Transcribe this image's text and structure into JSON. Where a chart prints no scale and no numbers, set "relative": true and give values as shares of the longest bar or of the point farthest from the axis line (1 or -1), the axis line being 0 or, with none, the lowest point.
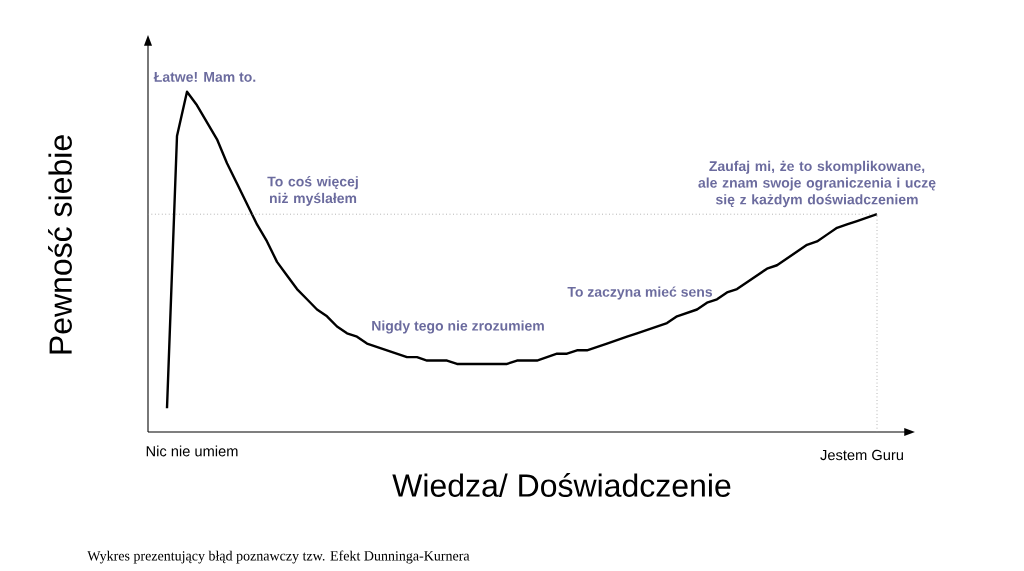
{
  "chart_data": {
    "type": "line",
    "relative": true,
    "xlabel": "Wiedza/ Doświadczenie",
    "ylabel": "Pewność siebie",
    "categories": [
      null,
      null,
      null,
      null,
      null,
      null,
      null,
      null,
      null,
      null,
      null,
      null,
      null,
      null,
      null,
      null,
      null,
      null,
      null,
      null,
      null,
      null,
      null,
      null,
      null,
      null,
      null,
      null,
      null,
      null,
      null,
      null,
      null,
      null,
      null,
      null,
      null,
      null,
      null,
      null,
      null,
      null,
      null,
      null,
      null,
      null,
      null,
      null,
      null,
      null,
      null,
      null,
      null,
      null,
      null,
      null,
      null,
      null,
      null,
      null,
      null,
      null,
      null,
      null,
      null,
      null,
      null,
      null,
      null,
      null,
      null,
      null
    ],
    "series": [
      {
        "color": "#000000",
        "values": [
          0.07,
          0.87,
          1.0,
          0.96,
          0.91,
          0.86,
          0.79,
          0.73,
          0.67,
          0.61,
          0.56,
          0.5,
          0.46,
          0.42,
          0.39,
          0.36,
          0.34,
          0.31,
          0.29,
          0.28,
          0.26,
          0.25,
          0.24,
          0.23,
          0.22,
          0.22,
          0.21,
          0.21,
          0.21,
          0.2,
          0.2,
          0.2,
          0.2,
          0.2,
          0.2,
          0.21,
          0.21,
          0.21,
          0.22,
          0.23,
          0.23,
          0.24,
          0.24,
          0.25,
          0.26,
          0.27,
          0.28,
          0.29,
          0.3,
          0.31,
          0.32,
          0.34,
          0.35,
          0.36,
          0.38,
          0.39,
          0.41,
          0.42,
          0.44,
          0.46,
          0.48,
          0.49,
          0.51,
          0.53,
          0.55,
          0.56,
          0.58,
          0.6,
          0.61,
          0.62,
          0.63,
          0.64
        ]
      }
    ],
    "ref_lines": [
      {
        "axis": "y",
        "value": 0.64,
        "color": "#8c8c8c",
        "line_style": "dotted"
      }
    ],
    "annotations": [
      "Łatwe! Mam to.",
      "To coś więcej niż myślałem",
      "Nigdy tego nie zrozumiem",
      "To zaczyna mieć sens",
      "Zaufaj mi, że to skomplikowane, ale znam swoje ograniczenia i uczę się z każdym doświadczeniem",
      "Nic nie umiem",
      "Jestem Guru",
      "Wykres prezentujący błąd poznawczy tzw. Efekt Dunninga-Kurnera"
    ],
    "marker": "none",
    "line_style": "solid"
  }
}
